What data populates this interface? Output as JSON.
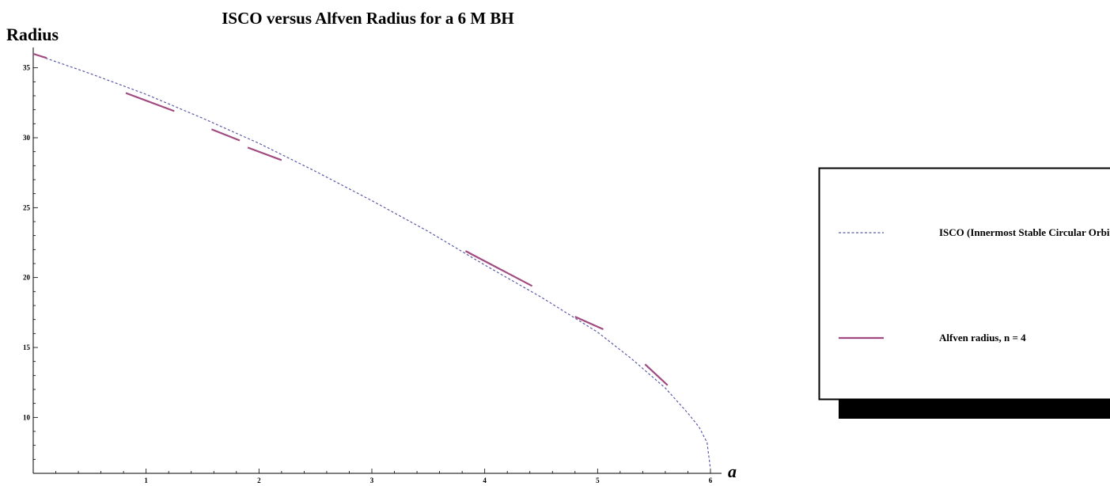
{
  "chart_data": {
    "type": "line",
    "title": "ISCO versus Alfven Radius for a 6 M BH",
    "ylabel": "Radius",
    "xlabel": "a",
    "xlim": [
      0,
      6
    ],
    "ylim": [
      6,
      36
    ],
    "x_ticks": [
      "1",
      "2",
      "3",
      "4",
      "5",
      "6"
    ],
    "y_ticks": [
      "10",
      "15",
      "20",
      "25",
      "30",
      "35"
    ],
    "x_tick_values": [
      1,
      2,
      3,
      4,
      5,
      6
    ],
    "y_tick_values": [
      10,
      15,
      20,
      25,
      30,
      35
    ],
    "grid": false,
    "legend_placement": "right",
    "series": [
      {
        "name": "ISCO (Innermost Stable Circular Orbit)",
        "style": "dashed",
        "color": "#5a5aa8",
        "x": [
          0,
          0.5,
          1,
          1.5,
          2,
          2.5,
          3,
          3.5,
          4,
          4.5,
          5,
          5.3,
          5.6,
          5.8,
          5.9,
          5.97,
          6
        ],
        "y": [
          36,
          34.6,
          33.1,
          31.4,
          29.6,
          27.6,
          25.5,
          23.3,
          20.9,
          18.6,
          16.1,
          14.2,
          12.1,
          10.3,
          9.3,
          8.2,
          6.3
        ]
      },
      {
        "name": "Alfven radius, n = 4",
        "style": "solid",
        "color": "#a04a80",
        "segments": [
          {
            "x": [
              0,
              0.12
            ],
            "y": [
              36,
              35.7
            ]
          },
          {
            "x": [
              0.82,
              1.25
            ],
            "y": [
              33.2,
              31.9
            ]
          },
          {
            "x": [
              1.58,
              1.83
            ],
            "y": [
              30.6,
              29.8
            ]
          },
          {
            "x": [
              1.9,
              2.2
            ],
            "y": [
              29.3,
              28.4
            ]
          },
          {
            "x": [
              3.83,
              4.42
            ],
            "y": [
              21.9,
              19.4
            ]
          },
          {
            "x": [
              4.8,
              5.05
            ],
            "y": [
              17.2,
              16.3
            ]
          },
          {
            "x": [
              5.42,
              5.62
            ],
            "y": [
              13.8,
              12.3
            ]
          }
        ]
      }
    ]
  },
  "legend": {
    "items": [
      {
        "label": "ISCO (Innermost Stable Circular Orbit)",
        "style": "dashed",
        "color": "#5a5aa8"
      },
      {
        "label": "Alfven radius, n = 4",
        "style": "solid",
        "color": "#a04a80"
      }
    ]
  }
}
